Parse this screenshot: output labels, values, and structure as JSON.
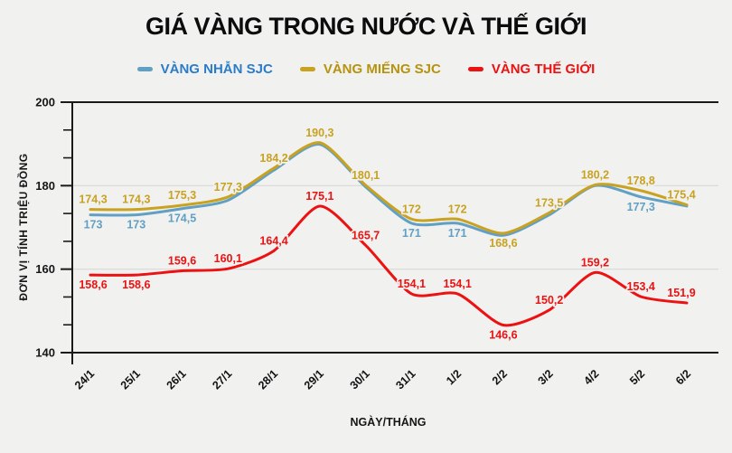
{
  "chart_data": {
    "type": "line",
    "title": "GIÁ VÀNG TRONG NƯỚC VÀ THẾ GIỚI",
    "xlabel": "NGÀY/THÁNG",
    "ylabel": "ĐƠN VỊ TÍNH TRIỆU ĐỒNG",
    "ylim": [
      140,
      200
    ],
    "yticks": [
      200,
      180,
      160,
      140
    ],
    "grid": "horizontal",
    "legend_position": "top-center",
    "categories": [
      "24/1",
      "25/1",
      "26/1",
      "27/1",
      "28/1",
      "29/1",
      "30/1",
      "31/1",
      "1/2",
      "2/2",
      "3/2",
      "4/2",
      "5/2",
      "6/2"
    ],
    "series": [
      {
        "name": "VÀNG NHẪN SJC",
        "line_color": "#61a0c4",
        "legend_text_color": "#2a7cc9",
        "values": [
          173,
          173,
          174.5,
          176.5,
          183.7,
          189.9,
          179.7,
          171,
          171,
          168.1,
          173,
          180,
          177.3,
          175.1
        ],
        "labels": [
          "173",
          "173",
          "174,5",
          "",
          "",
          "",
          "",
          "171",
          "171",
          "",
          "",
          "",
          "177,3",
          ""
        ]
      },
      {
        "name": "VÀNG MIẾNG SJC",
        "line_color": "#c9a21f",
        "legend_text_color": "#b6930d",
        "values": [
          174.3,
          174.3,
          175.3,
          177.3,
          184.2,
          190.3,
          180.1,
          172,
          172,
          168.6,
          173.5,
          180.2,
          178.8,
          175.4
        ],
        "labels": [
          "174,3",
          "174,3",
          "175,3",
          "177,3",
          "184,2",
          "190,3",
          "180,1",
          "172",
          "172",
          "168,6",
          "173,5",
          "180,2",
          "178,8",
          "175,4"
        ]
      },
      {
        "name": "VÀNG THẾ GIỚI",
        "line_color": "#ec1212",
        "legend_text_color": "#ec1212",
        "values": [
          158.6,
          158.6,
          159.6,
          160.1,
          164.4,
          175.1,
          165.7,
          154.1,
          154.1,
          146.6,
          150.2,
          159.2,
          153.4,
          151.9
        ],
        "labels": [
          "158,6",
          "158,6",
          "159,6",
          "160,1",
          "164,4",
          "175,1",
          "165,7",
          "154,1",
          "154,1",
          "146,6",
          "150,2",
          "159,2",
          "153,4",
          "151,9"
        ]
      }
    ],
    "colors": {
      "background": "#f1f1f0",
      "grid_light": "#d8d8d8",
      "axis_dark": "#1a1a1a",
      "title_text": "#0c0c0c"
    }
  }
}
